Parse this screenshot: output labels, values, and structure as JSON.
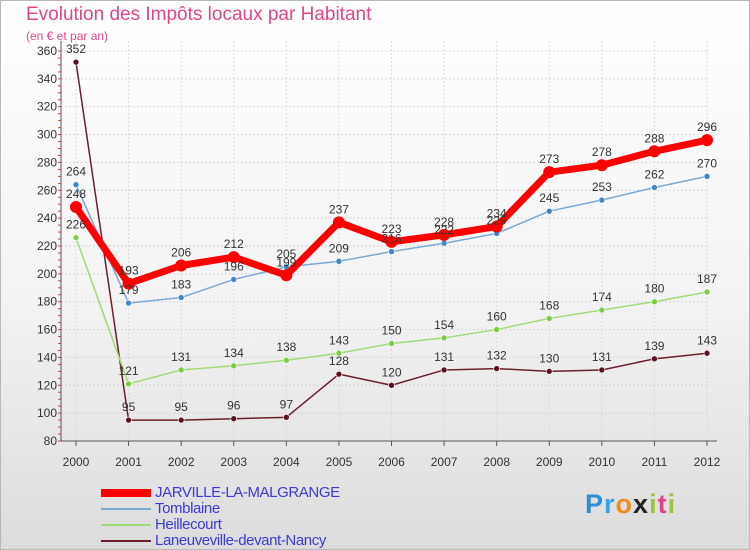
{
  "chart_data": {
    "type": "line",
    "title": "Evolution des Impôts locaux par Habitant",
    "subtitle": "(en € et par an)",
    "categories": [
      "2000",
      "2001",
      "2002",
      "2003",
      "2004",
      "2005",
      "2006",
      "2007",
      "2008",
      "2009",
      "2010",
      "2011",
      "2012"
    ],
    "ylim": [
      80,
      360
    ],
    "yticks": [
      80,
      100,
      120,
      140,
      160,
      180,
      200,
      220,
      240,
      260,
      280,
      300,
      320,
      340,
      360
    ],
    "series": [
      {
        "name": "Laneuveville-devant-Nancy",
        "color": "#6e1e2a",
        "marker": "#5a1420",
        "values": [
          352,
          95,
          95,
          96,
          97,
          128,
          120,
          131,
          132,
          130,
          131,
          139,
          143
        ]
      },
      {
        "name": "Heillecourt",
        "color": "#9fdc75",
        "marker": "#7ccd45",
        "values": [
          226,
          121,
          131,
          134,
          138,
          143,
          150,
          154,
          160,
          168,
          174,
          180,
          187
        ]
      },
      {
        "name": "Tomblaine",
        "color": "#79a9d4",
        "marker": "#3f86c8",
        "values": [
          264,
          179,
          183,
          196,
          205,
          209,
          216,
          222,
          229,
          245,
          253,
          262,
          270
        ]
      },
      {
        "name": "JARVILLE-LA-MALGRANGE",
        "color": "#ff0000",
        "marker": "#ff0000",
        "values": [
          248,
          193,
          206,
          212,
          199,
          237,
          223,
          228,
          234,
          273,
          278,
          288,
          296
        ]
      }
    ]
  },
  "legend": [
    {
      "label": "JARVILLE-LA-MALGRANGE",
      "color": "#ff0000",
      "text_color": "#3a3ad8"
    },
    {
      "label": "Tomblaine",
      "color": "#79a9d4",
      "text_color": "#3a3ad8"
    },
    {
      "label": "Heillecourt",
      "color": "#9fdc75",
      "text_color": "#3a3ad8"
    },
    {
      "label": "Laneuveville-devant-Nancy",
      "color": "#6e1e2a",
      "text_color": "#3a3ad8"
    }
  ],
  "brand": {
    "letters": [
      "P",
      "r",
      "o",
      "x",
      "i",
      "t",
      "i"
    ],
    "colors": [
      "#2f8fd6",
      "#3aa0e0",
      "#f08a1c",
      "#222222",
      "#9bc63a",
      "#e0458a",
      "#9bc63a"
    ]
  }
}
